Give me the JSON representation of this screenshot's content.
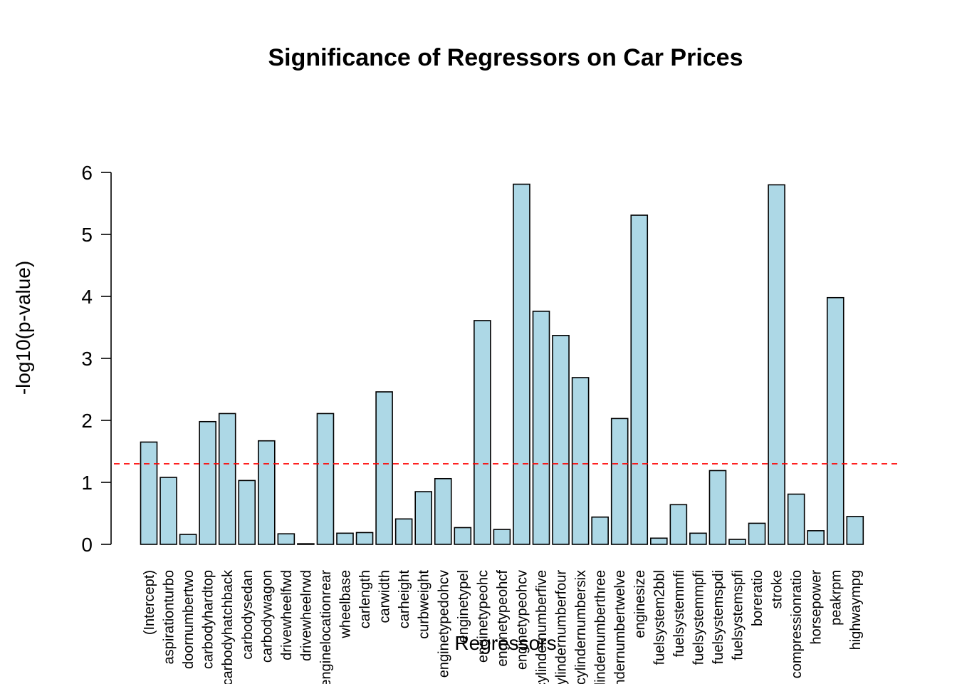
{
  "chart_data": {
    "type": "bar",
    "title": "Significance of Regressors on Car Prices",
    "xlabel": "Regressors",
    "ylabel": "-log10(p-value)",
    "ylim": [
      0,
      6
    ],
    "yticks": [
      0,
      1,
      2,
      3,
      4,
      5,
      6
    ],
    "grid": false,
    "categories": [
      "(Intercept)",
      "aspirationturbo",
      "doornumbertwo",
      "carbodyhardtop",
      "carbodyhatchback",
      "carbodysedan",
      "carbodywagon",
      "drivewheelfwd",
      "drivewheelrwd",
      "enginelocationrear",
      "wheelbase",
      "carlength",
      "carwidth",
      "carheight",
      "curbweight",
      "enginetypedohcv",
      "enginetypel",
      "enginetypeohc",
      "enginetypeohcf",
      "enginetypeohcv",
      "cylindernumberfive",
      "cylindernumberfour",
      "cylindernumbersix",
      "cylindernumberthree",
      "cylindernumbertwelve",
      "enginesize",
      "fuelsystem2bbl",
      "fuelsystemmfi",
      "fuelsystemmpfi",
      "fuelsystemspdi",
      "fuelsystemspfi",
      "boreratio",
      "stroke",
      "compressionratio",
      "horsepower",
      "peakrpm",
      "highwaympg"
    ],
    "values": [
      1.65,
      1.08,
      0.16,
      1.98,
      2.11,
      1.03,
      1.67,
      0.17,
      0.01,
      2.11,
      0.18,
      0.19,
      2.46,
      0.41,
      0.85,
      1.06,
      0.27,
      3.61,
      0.24,
      5.81,
      3.76,
      3.37,
      2.69,
      0.44,
      2.03,
      5.31,
      0.1,
      0.64,
      0.18,
      1.19,
      0.08,
      0.34,
      5.8,
      0.81,
      0.22,
      3.98,
      0.45
    ],
    "reference_line": {
      "value": 1.3,
      "style": "dashed"
    },
    "colors": {
      "bar_fill": "#add8e6",
      "bar_stroke": "#000000",
      "reference_line": "#ff0000"
    }
  }
}
